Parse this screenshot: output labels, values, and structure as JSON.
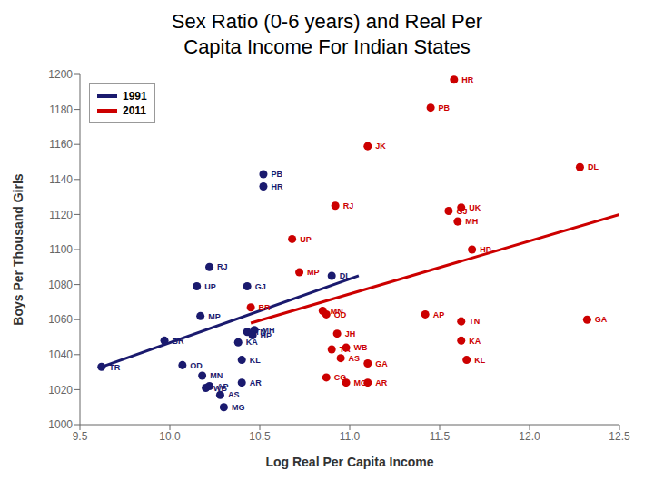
{
  "chart_data": {
    "type": "scatter",
    "title": "Sex Ratio (0-6 years) and Real Per\nCapita Income For Indian States",
    "x_label": "Log Real Per Capita Income",
    "y_label": "Boys Per Thousand Girls",
    "xlim": [
      9.5,
      12.5
    ],
    "ylim": [
      1000,
      1200
    ],
    "xticks": [
      9.5,
      {
        "value": 10.0,
        "label": "10.0"
      },
      10.5,
      {
        "value": 11.0,
        "label": "11.0"
      },
      11.5,
      {
        "value": 12.0,
        "label": "12.0"
      },
      12.5
    ],
    "yticks": [
      1000,
      1020,
      1040,
      1060,
      1080,
      1100,
      1120,
      1140,
      1160,
      1180,
      1200
    ],
    "grid": false,
    "legend": "upper left",
    "series": [
      {
        "name": "1991",
        "color": "#1a1a6e",
        "labels": [
          "TR",
          "BR",
          "OD",
          "MN",
          "UP",
          "AP",
          "WB",
          "AS",
          "MG",
          "MP",
          "RJ",
          "KA",
          "KL",
          "AR",
          "GJ",
          "TN",
          "MH",
          "HP",
          "PB",
          "HR",
          "DL"
        ],
        "x": [
          9.62,
          9.97,
          10.07,
          10.18,
          10.15,
          10.22,
          10.2,
          10.28,
          10.3,
          10.17,
          10.22,
          10.38,
          10.4,
          10.4,
          10.43,
          10.43,
          10.47,
          10.46,
          10.52,
          10.52,
          10.9
        ],
        "values": [
          1033,
          1048,
          1034,
          1028,
          1079,
          1022,
          1021,
          1017,
          1010,
          1062,
          1090,
          1047,
          1037,
          1024,
          1079,
          1053,
          1054,
          1051,
          1143,
          1136,
          1085
        ],
        "trend": {
          "x": [
            9.62,
            11.05
          ],
          "values": [
            1033,
            1085
          ]
        }
      },
      {
        "name": "2011",
        "color": "#cc0000",
        "labels": [
          "HR",
          "PB",
          "JK",
          "DL",
          "RJ",
          "UK",
          "GJ",
          "MH",
          "HP",
          "UP",
          "MP",
          "BR",
          "MN",
          "OD",
          "JH",
          "TN",
          "AP",
          "KA",
          "TR",
          "WB",
          "AS",
          "CG",
          "MG",
          "AR",
          "GA",
          "GA",
          "KL"
        ],
        "x": [
          11.58,
          11.45,
          11.1,
          12.28,
          10.92,
          11.62,
          11.55,
          11.6,
          11.68,
          10.68,
          10.72,
          10.45,
          10.85,
          10.87,
          10.93,
          11.62,
          11.42,
          11.62,
          10.9,
          10.98,
          10.95,
          10.87,
          10.98,
          11.1,
          11.1,
          12.32,
          11.65
        ],
        "values": [
          1197,
          1181,
          1159,
          1147,
          1125,
          1124,
          1122,
          1116,
          1100,
          1106,
          1087,
          1067,
          1065,
          1063,
          1052,
          1059,
          1063,
          1048,
          1043,
          1044,
          1038,
          1027,
          1024,
          1024,
          1035,
          1060,
          1037
        ],
        "trend": {
          "x": [
            10.45,
            12.5
          ],
          "values": [
            1058,
            1120
          ]
        }
      }
    ]
  }
}
